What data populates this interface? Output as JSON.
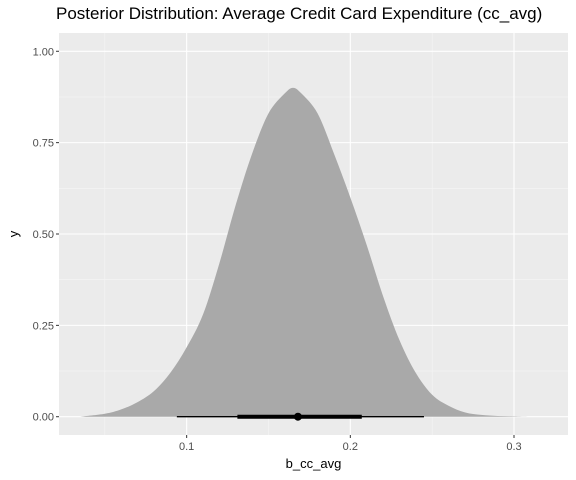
{
  "chart_data": {
    "type": "area",
    "title": "Posterior Distribution: Average Credit Card Expenditure (cc_avg)",
    "xlabel": "b_cc_avg",
    "ylabel": "y",
    "xlim": [
      0.022,
      0.333
    ],
    "ylim": [
      -0.05,
      1.05
    ],
    "x_ticks": [
      0.1,
      0.2,
      0.3
    ],
    "x_tick_labels": [
      "0.1",
      "0.2",
      "0.3"
    ],
    "y_ticks": [
      0.0,
      0.25,
      0.5,
      0.75,
      1.0
    ],
    "y_tick_labels": [
      "0.00",
      "0.25",
      "0.50",
      "0.75",
      "1.00"
    ],
    "grid": true,
    "panel_background": "#ebebeb",
    "fill_color": "#a9a9a9",
    "density": {
      "x": [
        0.035,
        0.05,
        0.06,
        0.07,
        0.08,
        0.09,
        0.1,
        0.11,
        0.12,
        0.13,
        0.14,
        0.15,
        0.16,
        0.165,
        0.17,
        0.18,
        0.19,
        0.2,
        0.21,
        0.22,
        0.23,
        0.24,
        0.25,
        0.26,
        0.27,
        0.28,
        0.29,
        0.3,
        0.31,
        0.325
      ],
      "y": [
        0.0,
        0.008,
        0.02,
        0.04,
        0.07,
        0.12,
        0.19,
        0.28,
        0.42,
        0.58,
        0.72,
        0.83,
        0.885,
        0.9,
        0.885,
        0.83,
        0.72,
        0.6,
        0.47,
        0.33,
        0.21,
        0.12,
        0.06,
        0.03,
        0.012,
        0.005,
        0.002,
        0.001,
        0.0,
        0.0
      ]
    },
    "interval": {
      "point": 0.168,
      "inner": [
        0.131,
        0.207
      ],
      "outer": [
        0.094,
        0.245
      ]
    }
  }
}
